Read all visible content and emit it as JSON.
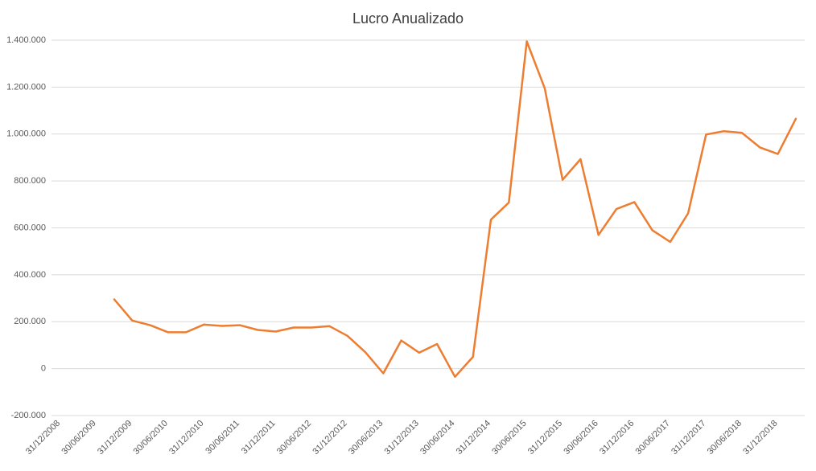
{
  "chart_data": {
    "type": "line",
    "title": "Lucro Anualizado",
    "categories": [
      "31/12/2008",
      null,
      "30/06/2009",
      null,
      "31/12/2009",
      null,
      "30/06/2010",
      null,
      "31/12/2010",
      null,
      "30/06/2011",
      null,
      "31/12/2011",
      null,
      "30/06/2012",
      null,
      "31/12/2012",
      null,
      "30/06/2013",
      null,
      "31/12/2013",
      null,
      "30/06/2014",
      null,
      "31/12/2014",
      null,
      "30/06/2015",
      null,
      "31/12/2015",
      null,
      "30/06/2016",
      null,
      "31/12/2016",
      null,
      "30/06/2017",
      null,
      "31/12/2017",
      null,
      "30/06/2018",
      null,
      "31/12/2018",
      null
    ],
    "series": [
      {
        "color": "#ed7d31",
        "values": [
          null,
          null,
          null,
          295000,
          205000,
          185000,
          155000,
          155000,
          188000,
          182000,
          185000,
          165000,
          158000,
          175000,
          175000,
          181000,
          140000,
          70000,
          -20000,
          120000,
          68000,
          105000,
          -35000,
          50000,
          635000,
          708000,
          1395000,
          1195000,
          805000,
          893000,
          570000,
          680000,
          710000,
          590000,
          540000,
          662000,
          998000,
          1012000,
          1005000,
          943000,
          915000,
          1065000
        ]
      }
    ],
    "ylim": [
      -200000,
      1400000
    ],
    "yticks": [
      {
        "value": -200000,
        "label": "-200.000"
      },
      0,
      {
        "value": 200000,
        "label": "200.000"
      },
      {
        "value": 400000,
        "label": "400.000"
      },
      {
        "value": 600000,
        "label": "600.000"
      },
      {
        "value": 800000,
        "label": "800.000"
      },
      {
        "value": 1000000,
        "label": "1.000.000"
      },
      {
        "value": 1200000,
        "label": "1.200.000"
      },
      {
        "value": 1400000,
        "label": "1.400.000"
      }
    ],
    "grid": true
  }
}
